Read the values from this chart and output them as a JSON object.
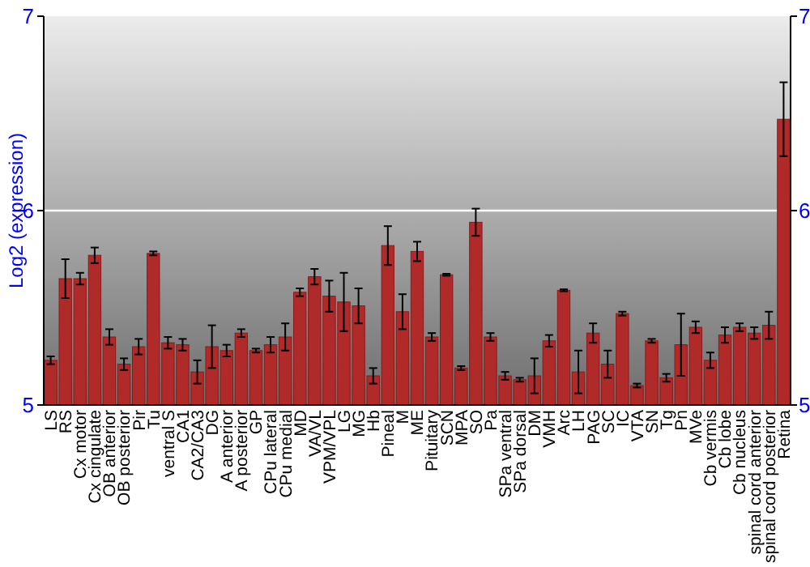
{
  "chart_data": {
    "type": "bar",
    "ylabel": "Log2 (expression)",
    "categories": [
      "LS",
      "RS",
      "Cx motor",
      "Cx cingulate",
      "OB anterior",
      "OB posterior",
      "Pir",
      "Tu",
      "ventral S",
      "CA1",
      "CA2/CA3",
      "DG",
      "A anterior",
      "A posterior",
      "GP",
      "CPu lateral",
      "CPu medial",
      "MD",
      "VA/VL",
      "VPM/VPL",
      "LG",
      "MG",
      "Hb",
      "Pineal",
      "M",
      "ME",
      "Pituitary",
      "SCN",
      "MPA",
      "SO",
      "Pa",
      "SPa ventral",
      "SPa dorsal",
      "DM",
      "VMH",
      "Arc",
      "LH",
      "PAG",
      "SC",
      "IC",
      "VTA",
      "SN",
      "Tg",
      "Pn",
      "MVe",
      "Cb vermis",
      "Cb lobe",
      "Cb nucleus",
      "spinal cord anterior",
      "spinal cord posterior",
      "Retina"
    ],
    "values": [
      5.23,
      5.65,
      5.65,
      5.77,
      5.35,
      5.21,
      5.3,
      5.78,
      5.32,
      5.31,
      5.17,
      5.3,
      5.28,
      5.37,
      5.28,
      5.31,
      5.35,
      5.58,
      5.66,
      5.56,
      5.53,
      5.51,
      5.15,
      5.82,
      5.48,
      5.79,
      5.35,
      5.67,
      5.19,
      5.94,
      5.35,
      5.15,
      5.13,
      5.15,
      5.33,
      5.59,
      5.17,
      5.37,
      5.21,
      5.47,
      5.1,
      5.33,
      5.14,
      5.31,
      5.4,
      5.23,
      5.36,
      5.4,
      5.37,
      5.41,
      6.47
    ],
    "errors": [
      0.02,
      0.1,
      0.03,
      0.04,
      0.04,
      0.03,
      0.04,
      0.01,
      0.03,
      0.03,
      0.06,
      0.11,
      0.03,
      0.02,
      0.01,
      0.04,
      0.07,
      0.02,
      0.04,
      0.08,
      0.15,
      0.09,
      0.04,
      0.1,
      0.09,
      0.05,
      0.02,
      0.005,
      0.01,
      0.07,
      0.02,
      0.02,
      0.01,
      0.09,
      0.03,
      0.005,
      0.11,
      0.05,
      0.07,
      0.01,
      0.01,
      0.01,
      0.02,
      0.16,
      0.03,
      0.04,
      0.04,
      0.02,
      0.03,
      0.07,
      0.19
    ],
    "color": "#b02a2a",
    "ylim": [
      5,
      7
    ],
    "yticks": [
      5,
      6,
      7
    ],
    "y2lim": [
      5,
      7
    ],
    "y2ticks": [
      5,
      6,
      7
    ],
    "ref_lines": [
      {
        "axis": "y",
        "value": 6,
        "color": "#ffffff"
      }
    ]
  }
}
